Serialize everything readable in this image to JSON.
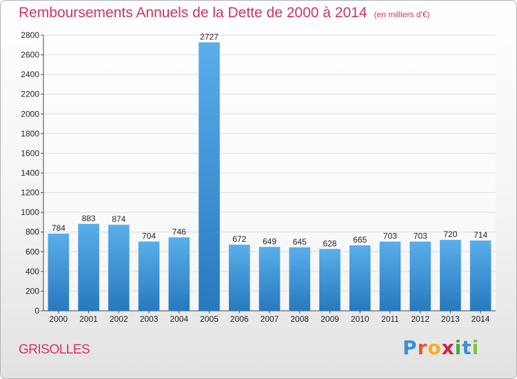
{
  "header": {
    "title": "Remboursements Annuels de la Dette de 2000 à 2014",
    "unit": "(en milliers d'€)"
  },
  "footer": {
    "city": "GRISOLLES",
    "brand_letters": [
      "P",
      "r",
      "o",
      "x",
      "i",
      "t",
      "i"
    ],
    "brand_colors": [
      "#3a8fd8",
      "#e05a2b",
      "#f2b01e",
      "#cc2244",
      "#3ab03a",
      "#3a8fd8",
      "#7bc043"
    ]
  },
  "colors": {
    "accent": "#cc3366",
    "bar_top": "#5aaeea",
    "bar_bottom": "#2779bf",
    "grid": "#dcdcdc"
  },
  "chart_data": {
    "type": "bar",
    "title": "Remboursements Annuels de la Dette de 2000 à 2014",
    "categories": [
      "2000",
      "2001",
      "2002",
      "2003",
      "2004",
      "2005",
      "2006",
      "2007",
      "2008",
      "2009",
      "2010",
      "2011",
      "2012",
      "2013",
      "2014"
    ],
    "values": [
      784,
      883,
      874,
      704,
      746,
      2727,
      672,
      649,
      645,
      628,
      665,
      703,
      703,
      720,
      714
    ],
    "ylim": [
      0,
      2800
    ],
    "yticks": [
      0,
      200,
      400,
      600,
      800,
      1000,
      1200,
      1400,
      1600,
      1800,
      2000,
      2200,
      2400,
      2600,
      2800
    ],
    "grid": true,
    "xlabel": "",
    "ylabel": ""
  }
}
